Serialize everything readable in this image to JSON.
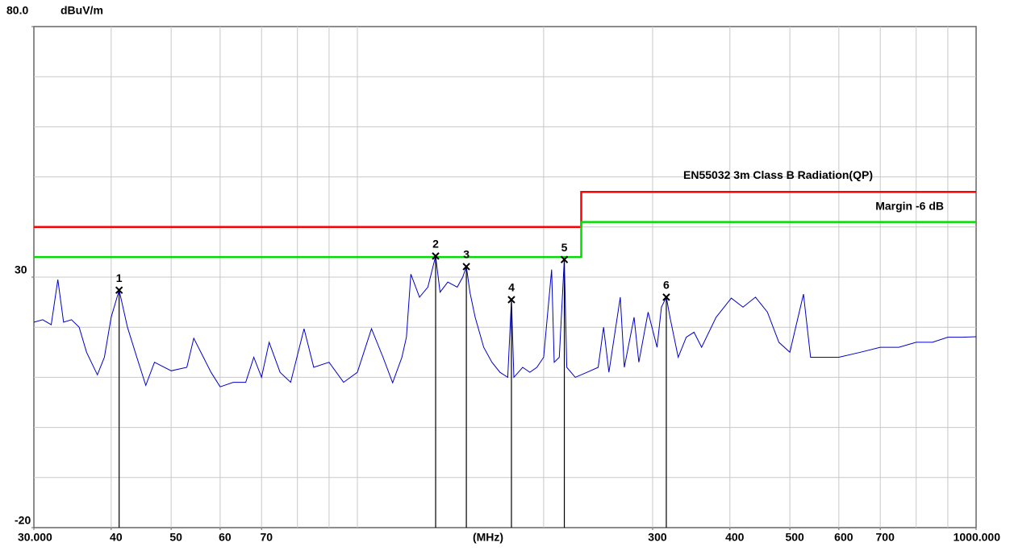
{
  "chart_data": {
    "type": "line",
    "y_label": "dBuV/m",
    "x_label": "(MHz)",
    "x_log": true,
    "xlim": [
      30,
      1000
    ],
    "ylim": [
      -20,
      80
    ],
    "xticks": [
      {
        "value": 30,
        "label": "30.000"
      },
      40,
      50,
      60,
      70,
      300,
      400,
      500,
      600,
      700,
      {
        "value": 1000,
        "label": "1000.000"
      }
    ],
    "xgrid": [
      40,
      50,
      60,
      70,
      80,
      90,
      100,
      200,
      300,
      400,
      500,
      600,
      700,
      800,
      900
    ],
    "yticks": [
      {
        "value": 80,
        "label": "80.0"
      },
      30,
      -20
    ],
    "ygrid": [
      70,
      60,
      50,
      40,
      30,
      20,
      10,
      0,
      -10
    ],
    "grid": true,
    "series": [
      {
        "name": "EN55032 3m Class B Radiation(QP)",
        "color": "#ff0000",
        "x": [
          30,
          230,
          230,
          1000
        ],
        "values": [
          40,
          40,
          47,
          47
        ]
      },
      {
        "name": "Margin -6 dB",
        "color": "#00dd00",
        "x": [
          30,
          230,
          230,
          1000
        ],
        "values": [
          34,
          34,
          41,
          41
        ]
      },
      {
        "color": "#0000cc",
        "x": [
          30,
          31,
          32,
          32.8,
          33.5,
          34.5,
          35.5,
          36.5,
          38,
          39,
          40,
          41.2,
          42.5,
          44,
          45.5,
          47,
          50,
          53,
          54.4,
          58,
          60,
          63,
          66,
          68,
          70,
          72,
          75,
          78,
          82,
          85,
          90,
          95,
          100,
          105.4,
          110,
          114,
          118,
          120,
          122,
          126,
          130,
          133.8,
          136,
          140,
          145,
          148,
          150,
          152,
          155,
          160,
          165,
          170,
          175,
          177.4,
          179,
          185,
          190,
          195,
          200,
          206,
          208,
          212,
          216,
          218,
          225,
          235,
          245,
          250,
          255,
          266,
          270,
          280,
          285,
          295,
          305,
          310,
          315.7,
          320,
          330,
          340,
          350,
          360,
          380,
          402,
          420,
          440,
          460,
          480,
          500,
          526,
          540,
          560,
          600,
          650,
          700,
          750,
          800,
          850,
          900,
          950,
          1000
        ],
        "values": [
          21,
          21.5,
          20.5,
          29.5,
          21,
          21.5,
          20,
          15,
          10.5,
          14,
          22,
          27.4,
          20,
          14,
          8.4,
          13,
          11.3,
          12,
          17.8,
          11,
          8.1,
          9,
          9,
          14,
          10,
          17,
          11,
          9,
          19.7,
          12,
          13,
          9,
          11,
          19.7,
          14,
          8.9,
          14,
          18,
          30.6,
          26,
          28,
          34.2,
          27,
          29,
          28,
          30,
          32.1,
          27,
          22,
          16,
          13,
          11,
          10,
          25.5,
          10,
          12,
          11,
          12,
          14,
          31.5,
          13,
          14,
          33.5,
          12,
          10,
          11,
          12,
          20,
          11,
          26,
          12,
          22,
          13,
          23,
          16,
          24,
          26,
          22,
          14,
          18,
          19,
          16,
          22,
          25.8,
          24,
          26,
          23,
          17,
          15,
          26.6,
          14,
          14,
          14,
          15,
          16,
          16,
          17,
          17,
          18,
          18,
          18.1
        ]
      }
    ],
    "markers": [
      {
        "label": "1",
        "x": 41.2,
        "y": 27.4
      },
      {
        "label": "2",
        "x": 133.8,
        "y": 34.2
      },
      {
        "label": "3",
        "x": 150,
        "y": 32.1
      },
      {
        "label": "4",
        "x": 177.4,
        "y": 25.5
      },
      {
        "label": "5",
        "x": 216,
        "y": 33.5
      },
      {
        "label": "6",
        "x": 315.7,
        "y": 26
      }
    ]
  }
}
